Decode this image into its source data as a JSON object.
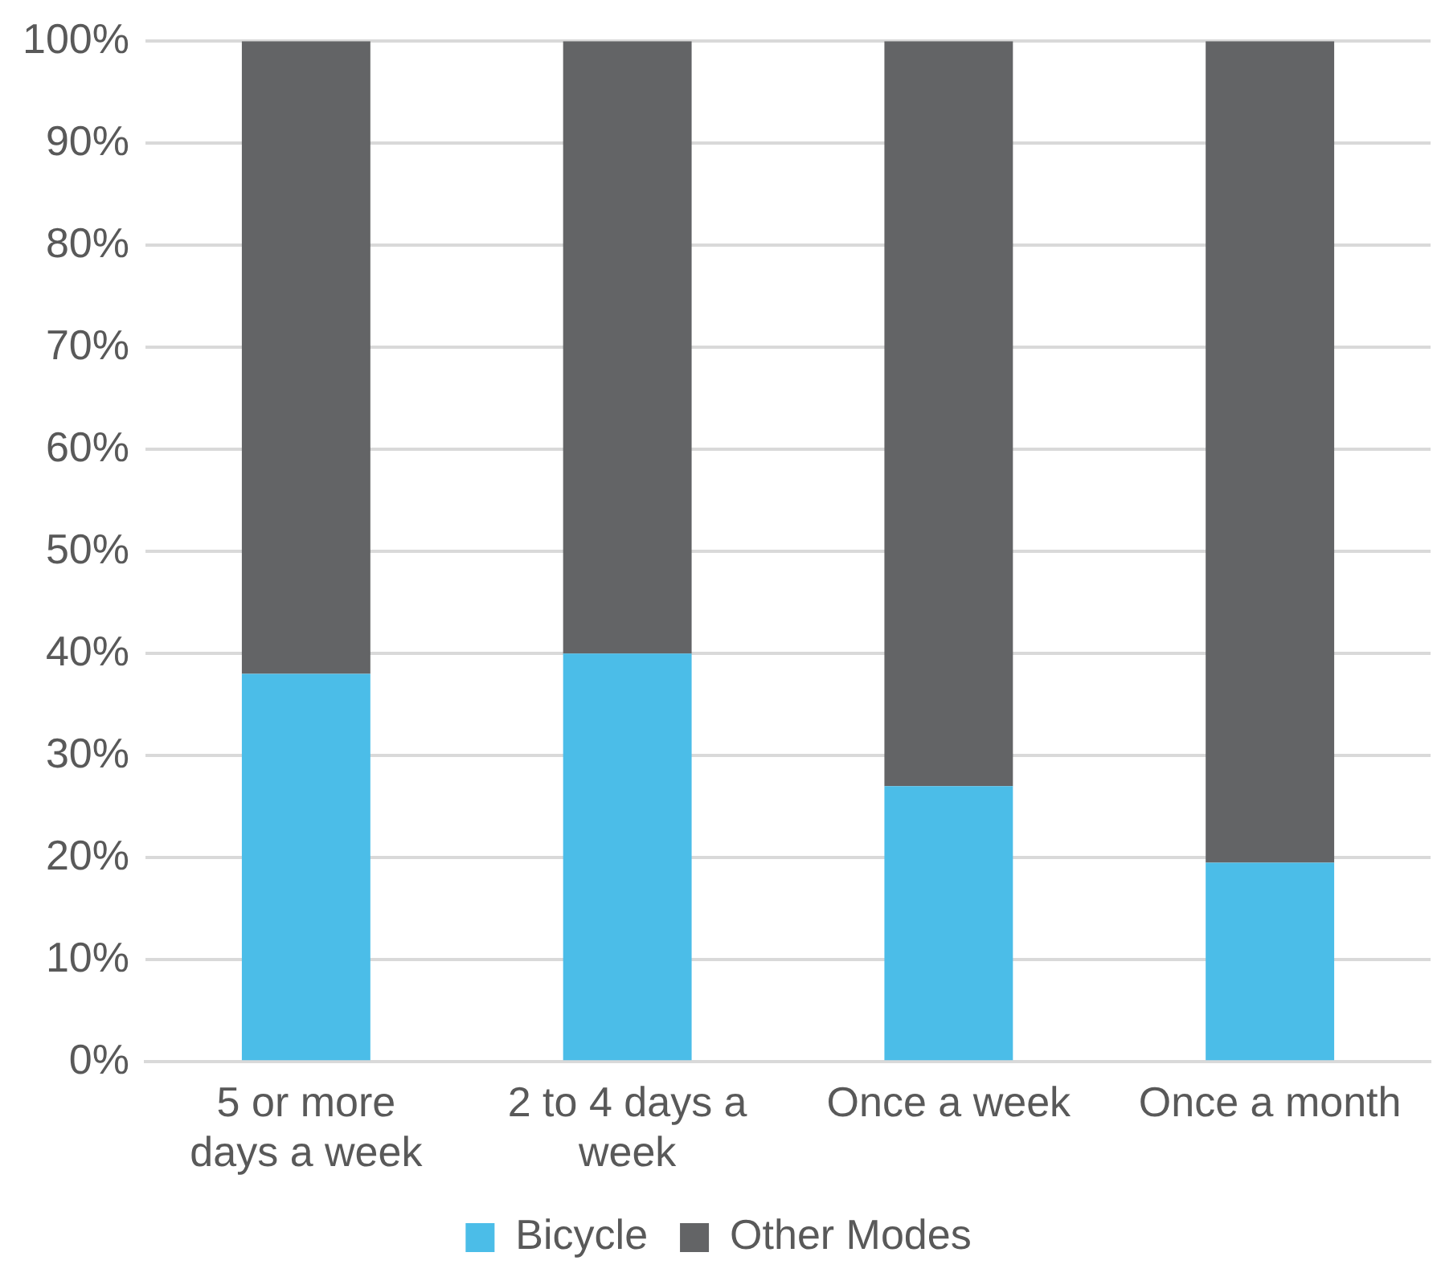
{
  "chart_data": {
    "type": "bar",
    "stacked": true,
    "categories": [
      "5 or more days a week",
      "2 to 4 days a week",
      "Once a week",
      "Once a month"
    ],
    "series": [
      {
        "name": "Bicycle",
        "color": "#4bbde8",
        "values": [
          38,
          40,
          27,
          19.5
        ]
      },
      {
        "name": "Other Modes",
        "color": "#636466",
        "values": [
          62,
          60,
          73,
          80.5
        ]
      }
    ],
    "ylim": [
      0,
      100
    ],
    "yticks": [
      {
        "value": 0,
        "label": "0%"
      },
      {
        "value": 10,
        "label": "10%"
      },
      {
        "value": 20,
        "label": "20%"
      },
      {
        "value": 30,
        "label": "30%"
      },
      {
        "value": 40,
        "label": "40%"
      },
      {
        "value": 50,
        "label": "50%"
      },
      {
        "value": 60,
        "label": "60%"
      },
      {
        "value": 70,
        "label": "70%"
      },
      {
        "value": 80,
        "label": "80%"
      },
      {
        "value": 90,
        "label": "90%"
      },
      {
        "value": 100,
        "label": "100%"
      }
    ],
    "grid": "y",
    "legend": "bottom"
  }
}
